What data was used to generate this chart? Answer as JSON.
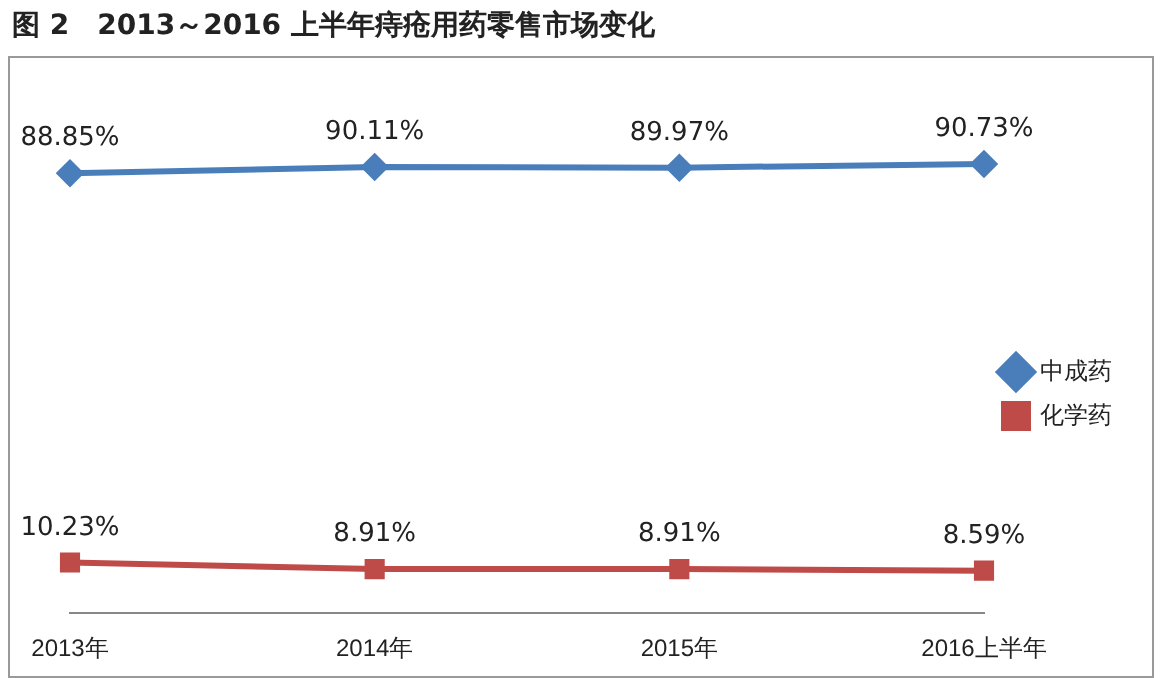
{
  "chart_data": {
    "type": "line",
    "title": "图 2　2013～2016 上半年痔疮用药零售市场变化",
    "categories": [
      "2013年",
      "2014年",
      "2015年",
      "2016上半年"
    ],
    "series": [
      {
        "name": "中成药",
        "color": "#4a7ebb",
        "values": [
          88.85,
          90.11,
          89.97,
          90.73
        ],
        "marker": "diamond",
        "value_labels": [
          "88.85%",
          "90.11%",
          "89.97%",
          "90.73%"
        ]
      },
      {
        "name": "化学药",
        "color": "#be4b48",
        "values": [
          10.23,
          8.91,
          8.91,
          8.59
        ],
        "marker": "square",
        "value_labels": [
          "10.23%",
          "8.91%",
          "8.91%",
          "8.59%"
        ]
      }
    ],
    "legend": "right",
    "grid": false,
    "tick_labels": "x"
  }
}
